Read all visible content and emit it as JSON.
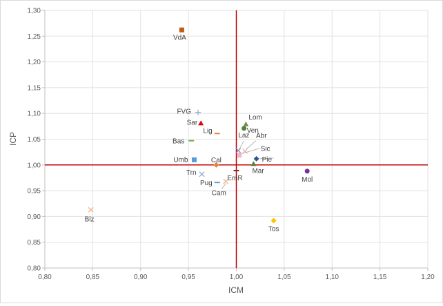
{
  "chart_data": {
    "type": "scatter",
    "title": "",
    "xlabel": "ICM",
    "ylabel": "ICP",
    "xlim": [
      0.8,
      1.2
    ],
    "ylim": [
      0.8,
      1.3
    ],
    "x_ticks": [
      "0,80",
      "0,85",
      "0,90",
      "0,95",
      "1,00",
      "1,05",
      "1,10",
      "1,15",
      "1,20"
    ],
    "y_ticks": [
      "0,80",
      "0,85",
      "0,90",
      "0,95",
      "1,00",
      "1,05",
      "1,10",
      "1,15",
      "1,20",
      "1,25",
      "1,30"
    ],
    "grid": true,
    "reference_lines": {
      "x": 1.0,
      "y": 1.0,
      "color": "#c00000"
    },
    "points": [
      {
        "label": "VdA",
        "x": 0.943,
        "y": 1.262,
        "marker": "square",
        "color": "#c55a11"
      },
      {
        "label": "FVG",
        "x": 0.96,
        "y": 1.102,
        "marker": "plus",
        "color": "#8faadc"
      },
      {
        "label": "Sar",
        "x": 0.963,
        "y": 1.081,
        "marker": "triangle",
        "color": "#e00000"
      },
      {
        "label": "Lig",
        "x": 0.98,
        "y": 1.061,
        "marker": "dash",
        "color": "#ed7d31"
      },
      {
        "label": "Bas",
        "x": 0.953,
        "y": 1.047,
        "marker": "dash",
        "color": "#70ad47"
      },
      {
        "label": "Umb",
        "x": 0.956,
        "y": 1.01,
        "marker": "square",
        "color": "#5b9bd5"
      },
      {
        "label": "Cal",
        "x": 0.979,
        "y": 1.0,
        "marker": "diamond",
        "color": "#ed7d31"
      },
      {
        "label": "Trn",
        "x": 0.964,
        "y": 0.982,
        "marker": "star",
        "color": "#8faadc"
      },
      {
        "label": "Pug",
        "x": 0.98,
        "y": 0.966,
        "marker": "dash",
        "color": "#5b9bd5"
      },
      {
        "label": "Cam",
        "x": 0.989,
        "y": 0.968,
        "marker": "star",
        "color": "#f4b183"
      },
      {
        "label": "EmR",
        "x": 1.0,
        "y": 0.989,
        "marker": "dash",
        "color": "#7b2c2c"
      },
      {
        "label": "Lom",
        "x": 1.01,
        "y": 1.079,
        "marker": "triangle",
        "color": "#6f8f5f"
      },
      {
        "label": "Ven",
        "x": 1.008,
        "y": 1.071,
        "marker": "circle",
        "color": "#548235"
      },
      {
        "label": "Laz",
        "x": 1.002,
        "y": 1.028,
        "marker": "star",
        "color": "#7f7fbf"
      },
      {
        "label": "Abr",
        "x": 1.009,
        "y": 1.027,
        "marker": "star",
        "color": "#e8b0b0"
      },
      {
        "label": "Sic",
        "x": 1.003,
        "y": 1.019,
        "marker": "square",
        "color": "#f4b6c2"
      },
      {
        "label": "Pie",
        "x": 1.021,
        "y": 1.012,
        "marker": "diamond",
        "color": "#2f5597"
      },
      {
        "label": "Mar",
        "x": 1.018,
        "y": 1.002,
        "marker": "triangle",
        "color": "#548235"
      },
      {
        "label": "Mol",
        "x": 1.074,
        "y": 0.988,
        "marker": "circle",
        "color": "#7030a0"
      },
      {
        "label": "Tos",
        "x": 1.039,
        "y": 0.892,
        "marker": "diamond",
        "color": "#ffc000"
      },
      {
        "label": "Blz",
        "x": 0.848,
        "y": 0.913,
        "marker": "star",
        "color": "#f4b183"
      }
    ]
  }
}
